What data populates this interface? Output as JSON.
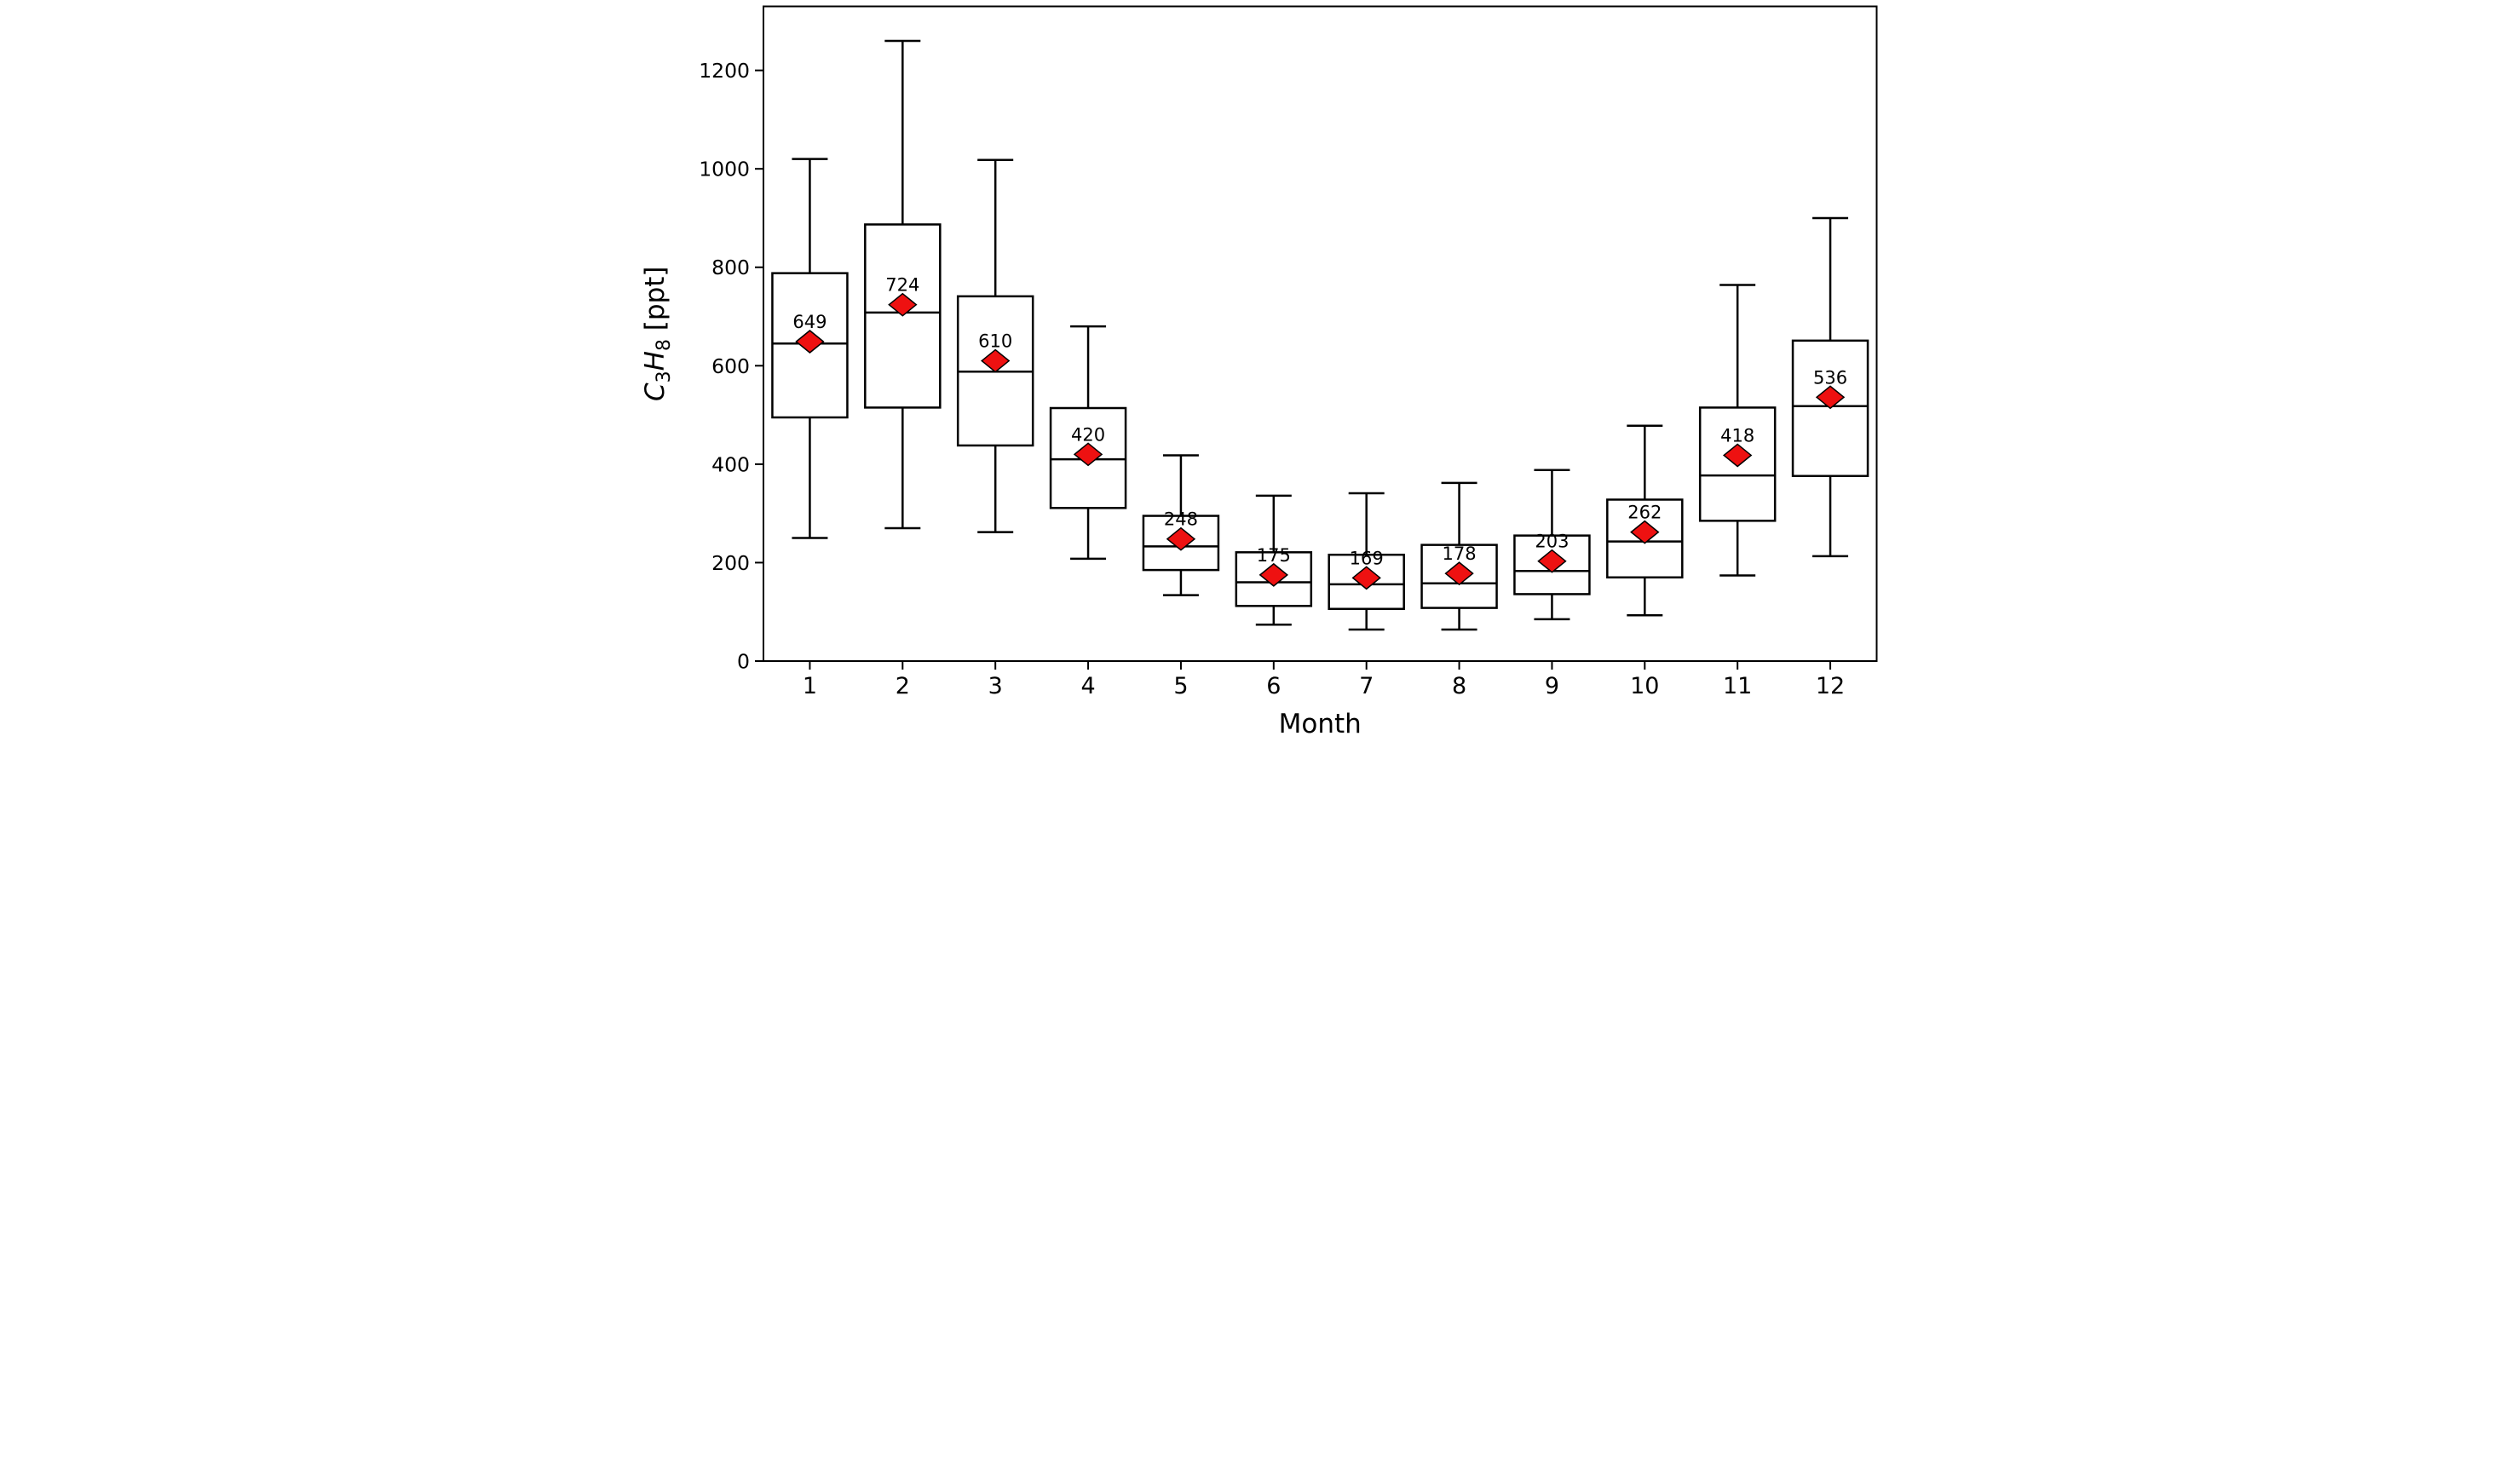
{
  "figure": {
    "background": "#ffffff",
    "plot_bg": "#ffffff",
    "line_color": "#000000",
    "box_fill": "#ffffff"
  },
  "chart_data": {
    "type": "boxplot",
    "title": "",
    "xlabel": "Month",
    "ylabel_plain": "C3H8 [ppt]",
    "ylabel_parts": {
      "sym1": "C",
      "sub1": "3",
      "sym2": "H",
      "sub2": "8",
      "unit": " [ppt]"
    },
    "categories": [
      "1",
      "2",
      "3",
      "4",
      "5",
      "6",
      "7",
      "8",
      "9",
      "10",
      "11",
      "12"
    ],
    "yticks": [
      "0",
      "200",
      "400",
      "600",
      "800",
      "1000",
      "1200"
    ],
    "ytick_values": [
      0,
      200,
      400,
      600,
      800,
      1000,
      1200
    ],
    "ylim": [
      0,
      1330
    ],
    "grid": false,
    "legend": "none",
    "mean_marker": {
      "shape": "diamond",
      "fill": "#ee1111",
      "edge": "#000000"
    },
    "mean_labels": [
      "649",
      "724",
      "610",
      "420",
      "248",
      "175",
      "169",
      "178",
      "203",
      "262",
      "418",
      "536"
    ],
    "series": [
      {
        "month": "1",
        "whislo": 250,
        "q1": 495,
        "med": 645,
        "q3": 788,
        "whishi": 1020,
        "mean": 649
      },
      {
        "month": "2",
        "whislo": 270,
        "q1": 515,
        "med": 708,
        "q3": 887,
        "whishi": 1260,
        "mean": 724
      },
      {
        "month": "3",
        "whislo": 262,
        "q1": 438,
        "med": 588,
        "q3": 741,
        "whishi": 1018,
        "mean": 610
      },
      {
        "month": "4",
        "whislo": 208,
        "q1": 311,
        "med": 410,
        "q3": 514,
        "whishi": 680,
        "mean": 420
      },
      {
        "month": "5",
        "whislo": 134,
        "q1": 185,
        "med": 233,
        "q3": 295,
        "whishi": 418,
        "mean": 248
      },
      {
        "month": "6",
        "whislo": 74,
        "q1": 112,
        "med": 160,
        "q3": 221,
        "whishi": 336,
        "mean": 175
      },
      {
        "month": "7",
        "whislo": 64,
        "q1": 106,
        "med": 156,
        "q3": 216,
        "whishi": 341,
        "mean": 169
      },
      {
        "month": "8",
        "whislo": 64,
        "q1": 108,
        "med": 158,
        "q3": 236,
        "whishi": 362,
        "mean": 178
      },
      {
        "month": "9",
        "whislo": 85,
        "q1": 136,
        "med": 183,
        "q3": 255,
        "whishi": 388,
        "mean": 203
      },
      {
        "month": "10",
        "whislo": 93,
        "q1": 170,
        "med": 243,
        "q3": 328,
        "whishi": 478,
        "mean": 262
      },
      {
        "month": "11",
        "whislo": 174,
        "q1": 285,
        "med": 377,
        "q3": 515,
        "whishi": 764,
        "mean": 418
      },
      {
        "month": "12",
        "whislo": 213,
        "q1": 376,
        "med": 518,
        "q3": 651,
        "whishi": 900,
        "mean": 536
      }
    ]
  }
}
